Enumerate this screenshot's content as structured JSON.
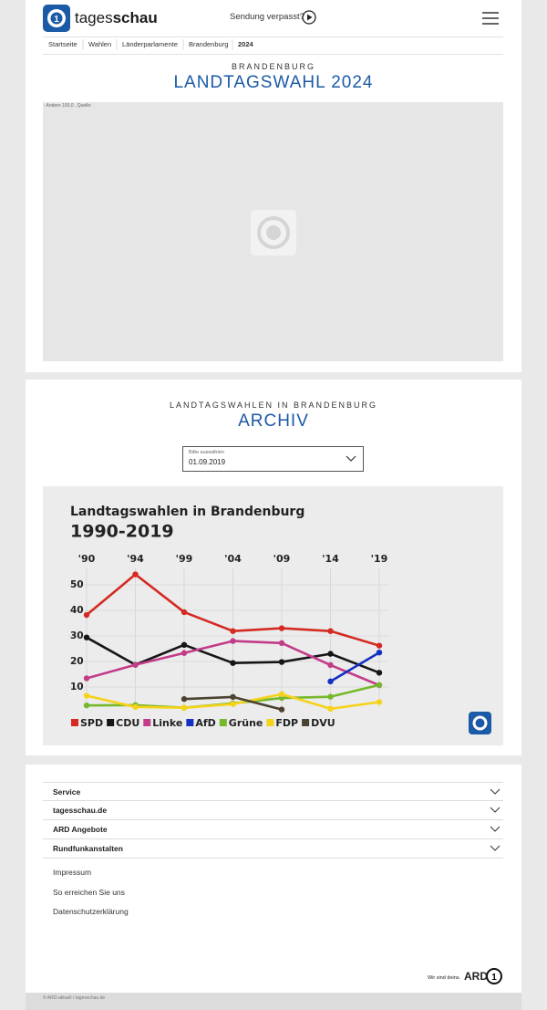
{
  "header": {
    "logo_prefix": "tages",
    "logo_suffix": "schau",
    "missed": "Sendung verpasst?"
  },
  "breadcrumbs": [
    "Startseite",
    "Wahlen",
    "Länderparlamente",
    "Brandenburg",
    "2024"
  ],
  "section1": {
    "kicker": "BRANDENBURG",
    "title": "LANDTAGSWAHL 2024",
    "image_alt": ": Andere 100,0 , Quelle:"
  },
  "section2": {
    "kicker": "LANDTAGSWAHLEN IN BRANDENBURG",
    "title": "ARCHIV",
    "select_label": "Bitte auswählen",
    "select_value": "01.09.2019"
  },
  "chart_data": {
    "type": "line",
    "title": "Landtagswahlen in Brandenburg",
    "subtitle": "1990-2019",
    "categories": [
      "'90",
      "'94",
      "'99",
      "'04",
      "'09",
      "'14",
      "'19"
    ],
    "ylim": [
      0,
      60
    ],
    "yticks": [
      10,
      20,
      30,
      40,
      50
    ],
    "grid": true,
    "series": [
      {
        "name": "SPD",
        "color": "#d42a22",
        "values": [
          38.2,
          54.1,
          39.3,
          31.9,
          33.0,
          31.9,
          26.2
        ]
      },
      {
        "name": "CDU",
        "color": "#161616",
        "values": [
          29.4,
          18.7,
          26.5,
          19.4,
          19.8,
          23.0,
          15.6
        ]
      },
      {
        "name": "Linke",
        "color": "#c23c89",
        "values": [
          13.4,
          18.7,
          23.3,
          28.0,
          27.2,
          18.6,
          10.7
        ]
      },
      {
        "name": "AfD",
        "color": "#1530c4",
        "values": [
          null,
          null,
          null,
          null,
          null,
          12.2,
          23.5
        ]
      },
      {
        "name": "Grüne",
        "color": "#76b82a",
        "values": [
          2.8,
          2.9,
          1.9,
          3.6,
          5.7,
          6.2,
          10.8
        ]
      },
      {
        "name": "FDP",
        "color": "#f6d21a",
        "values": [
          6.6,
          2.2,
          1.9,
          3.3,
          7.2,
          1.5,
          4.1
        ]
      },
      {
        "name": "DVU",
        "color": "#4b4230",
        "values": [
          null,
          null,
          5.3,
          6.1,
          1.2,
          null,
          null
        ]
      }
    ]
  },
  "footer": {
    "accordions": [
      "Service",
      "tagesschau.de",
      "ARD Angebote",
      "Rundfunkanstalten"
    ],
    "links": [
      "Impressum",
      "So erreichen Sie uns",
      "Datenschutzerklärung"
    ],
    "claim": "Wir sind deins.",
    "brand": "ARD",
    "copyright": "© ARD-aktuell / tagesschau.de"
  }
}
